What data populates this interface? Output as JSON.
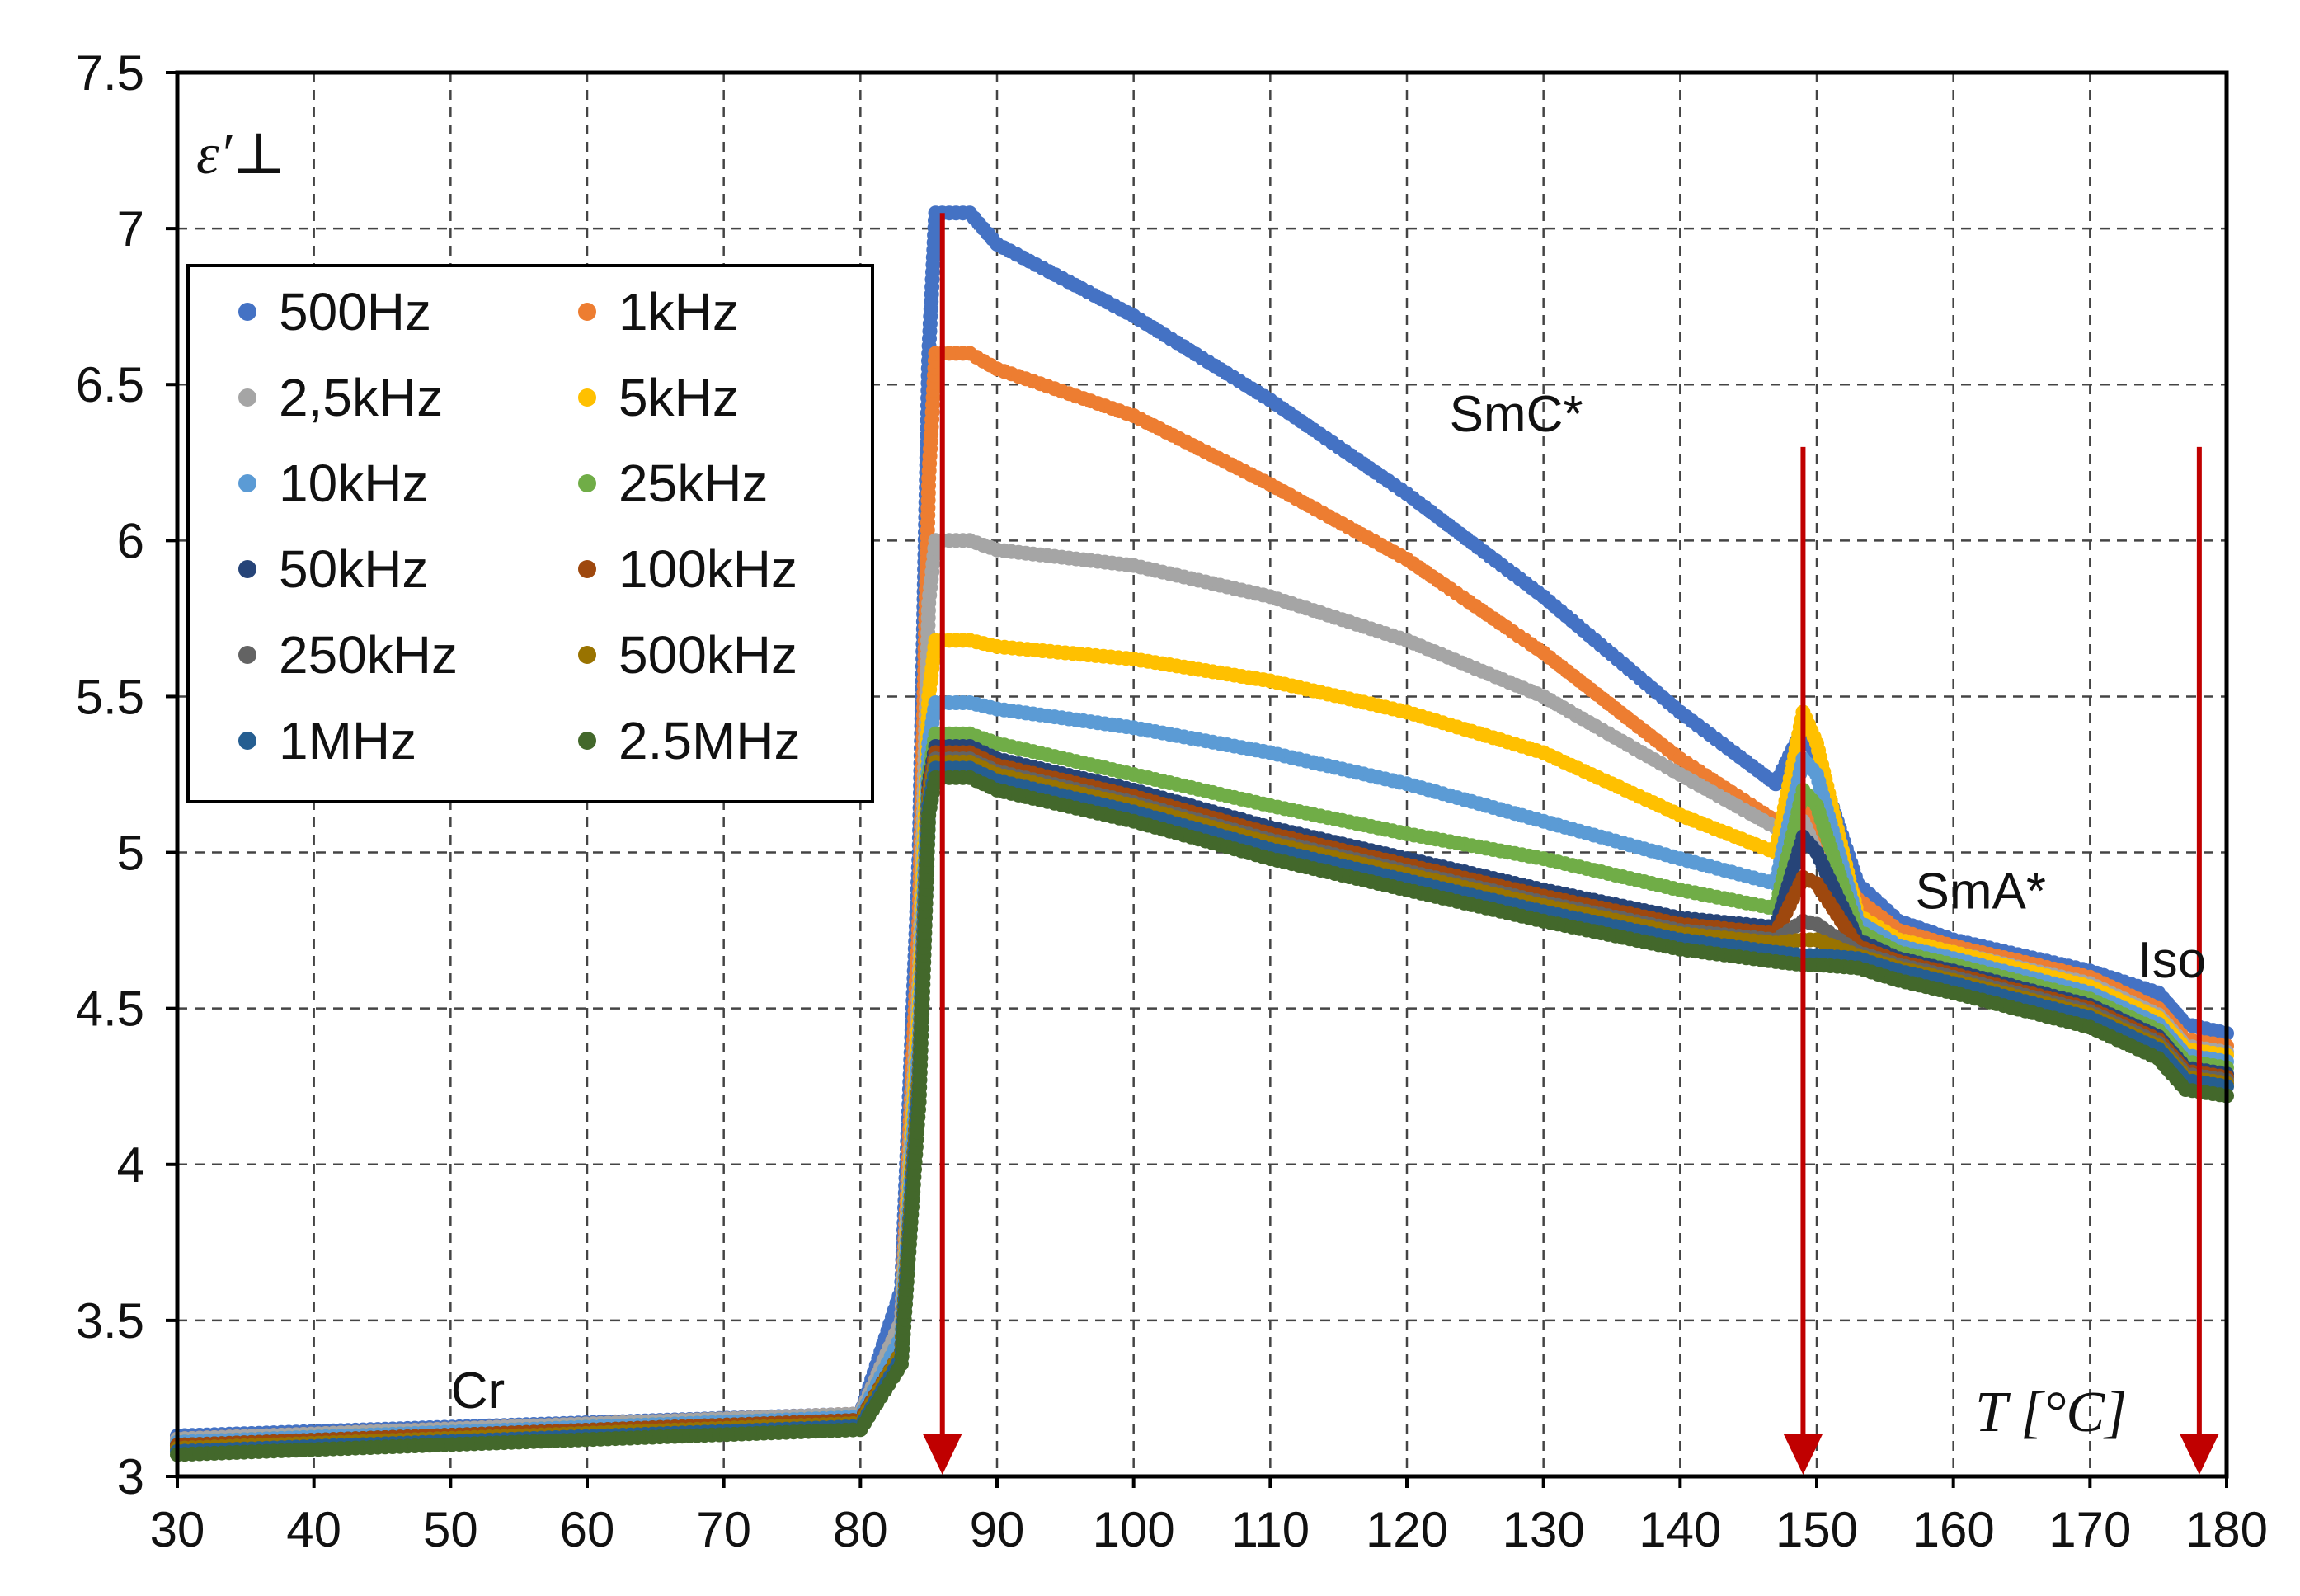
{
  "chart_data": {
    "type": "scatter",
    "title": "",
    "xlabel": "T [°C]",
    "ylabel": "ε′⊥",
    "xlim": [
      30,
      180
    ],
    "ylim": [
      3,
      7.5
    ],
    "grid": true,
    "legend_position": "top-left",
    "x_ticks": [
      "30",
      "40",
      "50",
      "60",
      "70",
      "80",
      "90",
      "100",
      "110",
      "120",
      "130",
      "140",
      "150",
      "160",
      "170",
      "180"
    ],
    "y_ticks": [
      "3",
      "3.5",
      "4",
      "4.5",
      "5",
      "5.5",
      "6",
      "6.5",
      "7",
      "7.5"
    ],
    "annotations": [
      {
        "text": "Cr",
        "x": 52,
        "y": 3.22
      },
      {
        "text": "SmC*",
        "x": 128,
        "y": 6.35
      },
      {
        "text": "SmA*",
        "x": 162,
        "y": 4.82
      },
      {
        "text": "Iso",
        "x": 176,
        "y": 4.6
      }
    ],
    "transition_arrows": [
      {
        "x": 86,
        "y_from": 7.05,
        "y_to": 3.0
      },
      {
        "x": 149,
        "y_from": 6.3,
        "y_to": 3.0
      },
      {
        "x": 178,
        "y_from": 6.3,
        "y_to": 3.0
      }
    ],
    "series": [
      {
        "name": "500Hz",
        "color": "#4472C4",
        "points": [
          [
            30,
            3.13
          ],
          [
            80,
            3.2
          ],
          [
            83,
            3.6
          ],
          [
            84.3,
            5.0
          ],
          [
            85,
            6.6
          ],
          [
            85.5,
            7.05
          ],
          [
            88,
            7.05
          ],
          [
            90,
            6.95
          ],
          [
            100,
            6.72
          ],
          [
            110,
            6.45
          ],
          [
            120,
            6.15
          ],
          [
            130,
            5.82
          ],
          [
            140,
            5.45
          ],
          [
            147,
            5.22
          ],
          [
            149,
            5.4
          ],
          [
            150,
            5.3
          ],
          [
            153,
            4.9
          ],
          [
            156,
            4.78
          ],
          [
            160,
            4.72
          ],
          [
            170,
            4.62
          ],
          [
            175,
            4.55
          ],
          [
            177,
            4.45
          ],
          [
            180,
            4.42
          ]
        ]
      },
      {
        "name": "1kHz",
        "color": "#ED7D31",
        "points": [
          [
            30,
            3.12
          ],
          [
            80,
            3.2
          ],
          [
            83,
            3.5
          ],
          [
            84.3,
            4.8
          ],
          [
            85,
            6.2
          ],
          [
            85.5,
            6.6
          ],
          [
            88,
            6.6
          ],
          [
            90,
            6.55
          ],
          [
            100,
            6.4
          ],
          [
            110,
            6.18
          ],
          [
            120,
            5.94
          ],
          [
            130,
            5.64
          ],
          [
            140,
            5.3
          ],
          [
            147,
            5.1
          ],
          [
            149,
            5.15
          ],
          [
            150,
            5.05
          ],
          [
            153,
            4.85
          ],
          [
            156,
            4.75
          ],
          [
            160,
            4.7
          ],
          [
            170,
            4.6
          ],
          [
            175,
            4.5
          ],
          [
            177,
            4.4
          ],
          [
            180,
            4.38
          ]
        ]
      },
      {
        "name": "2,5kHz",
        "color": "#A5A5A5",
        "points": [
          [
            30,
            3.12
          ],
          [
            80,
            3.2
          ],
          [
            83,
            3.5
          ],
          [
            84.3,
            4.6
          ],
          [
            85,
            5.8
          ],
          [
            85.5,
            6.0
          ],
          [
            88,
            6.0
          ],
          [
            90,
            5.97
          ],
          [
            100,
            5.92
          ],
          [
            110,
            5.82
          ],
          [
            120,
            5.68
          ],
          [
            130,
            5.5
          ],
          [
            140,
            5.25
          ],
          [
            147,
            5.08
          ],
          [
            149,
            5.1
          ],
          [
            150,
            5.0
          ],
          [
            153,
            4.78
          ],
          [
            156,
            4.72
          ],
          [
            160,
            4.68
          ],
          [
            170,
            4.58
          ],
          [
            175,
            4.48
          ],
          [
            177,
            4.38
          ],
          [
            180,
            4.36
          ]
        ]
      },
      {
        "name": "5kHz",
        "color": "#FFC000",
        "points": [
          [
            30,
            3.11
          ],
          [
            80,
            3.19
          ],
          [
            83,
            3.45
          ],
          [
            84.3,
            4.5
          ],
          [
            85,
            5.5
          ],
          [
            85.5,
            5.68
          ],
          [
            88,
            5.68
          ],
          [
            90,
            5.66
          ],
          [
            100,
            5.62
          ],
          [
            110,
            5.55
          ],
          [
            120,
            5.45
          ],
          [
            130,
            5.32
          ],
          [
            140,
            5.12
          ],
          [
            147,
            5.0
          ],
          [
            149,
            5.45
          ],
          [
            150,
            5.35
          ],
          [
            153,
            4.8
          ],
          [
            156,
            4.72
          ],
          [
            160,
            4.68
          ],
          [
            170,
            4.57
          ],
          [
            175,
            4.47
          ],
          [
            177,
            4.37
          ],
          [
            180,
            4.35
          ]
        ]
      },
      {
        "name": "10kHz",
        "color": "#5B9BD5",
        "points": [
          [
            30,
            3.11
          ],
          [
            80,
            3.19
          ],
          [
            83,
            3.45
          ],
          [
            84.3,
            4.4
          ],
          [
            85,
            5.35
          ],
          [
            85.5,
            5.48
          ],
          [
            88,
            5.48
          ],
          [
            90,
            5.46
          ],
          [
            100,
            5.4
          ],
          [
            110,
            5.32
          ],
          [
            120,
            5.22
          ],
          [
            130,
            5.1
          ],
          [
            140,
            4.98
          ],
          [
            147,
            4.9
          ],
          [
            149,
            5.3
          ],
          [
            150,
            5.25
          ],
          [
            153,
            4.78
          ],
          [
            156,
            4.7
          ],
          [
            160,
            4.66
          ],
          [
            170,
            4.55
          ],
          [
            175,
            4.45
          ],
          [
            177,
            4.35
          ],
          [
            180,
            4.33
          ]
        ]
      },
      {
        "name": "25kHz",
        "color": "#70AD47",
        "points": [
          [
            30,
            3.1
          ],
          [
            80,
            3.18
          ],
          [
            83,
            3.4
          ],
          [
            84.3,
            4.3
          ],
          [
            85,
            5.25
          ],
          [
            85.5,
            5.38
          ],
          [
            88,
            5.38
          ],
          [
            90,
            5.35
          ],
          [
            100,
            5.25
          ],
          [
            110,
            5.15
          ],
          [
            120,
            5.06
          ],
          [
            130,
            4.98
          ],
          [
            140,
            4.88
          ],
          [
            147,
            4.82
          ],
          [
            149,
            5.2
          ],
          [
            150,
            5.15
          ],
          [
            153,
            4.75
          ],
          [
            156,
            4.68
          ],
          [
            160,
            4.64
          ],
          [
            170,
            4.53
          ],
          [
            175,
            4.43
          ],
          [
            177,
            4.33
          ],
          [
            180,
            4.31
          ]
        ]
      },
      {
        "name": "50kHz",
        "color": "#264478",
        "points": [
          [
            30,
            3.1
          ],
          [
            80,
            3.18
          ],
          [
            83,
            3.4
          ],
          [
            84.3,
            4.3
          ],
          [
            85,
            5.22
          ],
          [
            85.5,
            5.34
          ],
          [
            88,
            5.34
          ],
          [
            90,
            5.3
          ],
          [
            100,
            5.2
          ],
          [
            110,
            5.08
          ],
          [
            120,
            4.98
          ],
          [
            130,
            4.88
          ],
          [
            140,
            4.79
          ],
          [
            147,
            4.76
          ],
          [
            149,
            5.05
          ],
          [
            150,
            5.0
          ],
          [
            153,
            4.72
          ],
          [
            156,
            4.66
          ],
          [
            160,
            4.62
          ],
          [
            170,
            4.51
          ],
          [
            175,
            4.41
          ],
          [
            177,
            4.31
          ],
          [
            180,
            4.29
          ]
        ]
      },
      {
        "name": "100kHz",
        "color": "#9E480E",
        "points": [
          [
            30,
            3.1
          ],
          [
            80,
            3.18
          ],
          [
            83,
            3.4
          ],
          [
            84.3,
            4.3
          ],
          [
            85,
            5.2
          ],
          [
            85.5,
            5.32
          ],
          [
            88,
            5.32
          ],
          [
            90,
            5.28
          ],
          [
            100,
            5.18
          ],
          [
            110,
            5.06
          ],
          [
            120,
            4.96
          ],
          [
            130,
            4.86
          ],
          [
            140,
            4.77
          ],
          [
            147,
            4.74
          ],
          [
            149,
            4.92
          ],
          [
            150,
            4.9
          ],
          [
            153,
            4.7
          ],
          [
            156,
            4.65
          ],
          [
            160,
            4.61
          ],
          [
            170,
            4.5
          ],
          [
            175,
            4.4
          ],
          [
            177,
            4.3
          ],
          [
            180,
            4.28
          ]
        ]
      },
      {
        "name": "250kHz",
        "color": "#636363",
        "points": [
          [
            30,
            3.09
          ],
          [
            80,
            3.17
          ],
          [
            83,
            3.4
          ],
          [
            84.3,
            4.3
          ],
          [
            85,
            5.18
          ],
          [
            85.5,
            5.3
          ],
          [
            88,
            5.3
          ],
          [
            90,
            5.26
          ],
          [
            100,
            5.16
          ],
          [
            110,
            5.04
          ],
          [
            120,
            4.94
          ],
          [
            130,
            4.84
          ],
          [
            140,
            4.75
          ],
          [
            147,
            4.72
          ],
          [
            149,
            4.78
          ],
          [
            150,
            4.77
          ],
          [
            153,
            4.68
          ],
          [
            156,
            4.64
          ],
          [
            160,
            4.6
          ],
          [
            170,
            4.49
          ],
          [
            175,
            4.39
          ],
          [
            177,
            4.29
          ],
          [
            180,
            4.27
          ]
        ]
      },
      {
        "name": "500kHz",
        "color": "#997300",
        "points": [
          [
            30,
            3.09
          ],
          [
            80,
            3.17
          ],
          [
            83,
            3.4
          ],
          [
            84.3,
            4.3
          ],
          [
            85,
            5.17
          ],
          [
            85.5,
            5.29
          ],
          [
            88,
            5.29
          ],
          [
            90,
            5.25
          ],
          [
            100,
            5.15
          ],
          [
            110,
            5.03
          ],
          [
            120,
            4.93
          ],
          [
            130,
            4.83
          ],
          [
            140,
            4.74
          ],
          [
            147,
            4.71
          ],
          [
            149,
            4.72
          ],
          [
            150,
            4.72
          ],
          [
            153,
            4.67
          ],
          [
            156,
            4.63
          ],
          [
            160,
            4.59
          ],
          [
            170,
            4.48
          ],
          [
            175,
            4.38
          ],
          [
            177,
            4.28
          ],
          [
            180,
            4.26
          ]
        ]
      },
      {
        "name": "1MHz",
        "color": "#255E91",
        "points": [
          [
            30,
            3.08
          ],
          [
            80,
            3.16
          ],
          [
            83,
            3.38
          ],
          [
            84.3,
            4.25
          ],
          [
            85,
            5.15
          ],
          [
            85.5,
            5.27
          ],
          [
            88,
            5.27
          ],
          [
            90,
            5.23
          ],
          [
            100,
            5.13
          ],
          [
            110,
            5.01
          ],
          [
            120,
            4.91
          ],
          [
            130,
            4.81
          ],
          [
            140,
            4.72
          ],
          [
            147,
            4.68
          ],
          [
            149,
            4.67
          ],
          [
            150,
            4.67
          ],
          [
            153,
            4.66
          ],
          [
            156,
            4.62
          ],
          [
            160,
            4.58
          ],
          [
            170,
            4.47
          ],
          [
            175,
            4.37
          ],
          [
            177,
            4.27
          ],
          [
            180,
            4.25
          ]
        ]
      },
      {
        "name": "2.5MHz",
        "color": "#43682B",
        "points": [
          [
            30,
            3.07
          ],
          [
            80,
            3.15
          ],
          [
            83,
            3.36
          ],
          [
            84.3,
            4.2
          ],
          [
            85,
            5.12
          ],
          [
            85.5,
            5.24
          ],
          [
            88,
            5.24
          ],
          [
            90,
            5.2
          ],
          [
            100,
            5.1
          ],
          [
            110,
            4.98
          ],
          [
            120,
            4.88
          ],
          [
            130,
            4.78
          ],
          [
            140,
            4.69
          ],
          [
            147,
            4.65
          ],
          [
            149,
            4.64
          ],
          [
            150,
            4.64
          ],
          [
            153,
            4.63
          ],
          [
            156,
            4.59
          ],
          [
            160,
            4.55
          ],
          [
            170,
            4.44
          ],
          [
            175,
            4.34
          ],
          [
            177,
            4.24
          ],
          [
            180,
            4.22
          ]
        ]
      }
    ]
  }
}
